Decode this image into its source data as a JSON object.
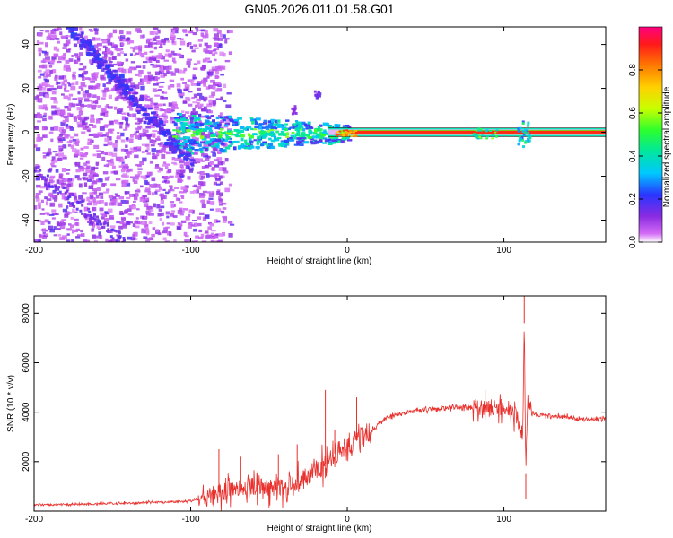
{
  "chart_data": [
    {
      "id": "spectrogram",
      "type": "heatmap",
      "title": "GN05.2026.011.01.58.G01",
      "xlabel": "Height of straight line (km)",
      "ylabel": "Frequency (Hz)",
      "xlim": [
        -200,
        165
      ],
      "ylim": [
        -50,
        48
      ],
      "xticks": [
        "-200",
        "-100",
        "0",
        "100"
      ],
      "xtick_values": [
        -200,
        -100,
        0,
        100
      ],
      "yticks": [
        "40",
        "20",
        "0",
        "-20",
        "-40"
      ],
      "ytick_values": [
        40,
        20,
        0,
        -20,
        -40
      ],
      "colorbar": {
        "label": "Normalized spectral amplitude",
        "range": [
          0,
          1
        ],
        "ticks": [
          "0.0",
          "0.2",
          "0.4",
          "0.6",
          "0.8"
        ],
        "tick_values": [
          0,
          0.2,
          0.4,
          0.6,
          0.8
        ]
      },
      "features": {
        "noise_region_km": [
          -200,
          -85
        ],
        "diagonal_trace": {
          "from": [
            -178,
            48
          ],
          "to": [
            -100,
            -14
          ]
        },
        "carrier_line_hz": 0,
        "carrier_strong_from_km": 0
      }
    },
    {
      "id": "snr",
      "type": "line",
      "xlabel": "Height of straight line (km)",
      "ylabel": "SNR (10 * v/v)",
      "xlim": [
        -200,
        165
      ],
      "ylim": [
        0,
        8700
      ],
      "xticks": [
        "-200",
        "-100",
        "0",
        "100"
      ],
      "xtick_values": [
        -200,
        -100,
        0,
        100
      ],
      "yticks": [
        "2000",
        "4000",
        "6000",
        "8000"
      ],
      "ytick_values": [
        2000,
        4000,
        6000,
        8000
      ],
      "color": "#e8302c",
      "series": {
        "name": "SNR",
        "x": [
          -200,
          -170,
          -140,
          -110,
          -100,
          -90,
          -80,
          -70,
          -60,
          -50,
          -40,
          -30,
          -25,
          -20,
          -15,
          -10,
          -5,
          0,
          5,
          10,
          15,
          20,
          25,
          30,
          40,
          50,
          60,
          70,
          80,
          85,
          90,
          95,
          100,
          105,
          108,
          110,
          112,
          113,
          114,
          115,
          116,
          118,
          120,
          130,
          140,
          150,
          165
        ],
        "y": [
          250,
          280,
          320,
          380,
          420,
          550,
          800,
          900,
          950,
          1000,
          1050,
          1200,
          1400,
          1500,
          1800,
          2200,
          2500,
          2600,
          2800,
          3000,
          3200,
          3500,
          3750,
          3900,
          4000,
          4100,
          4150,
          4200,
          4200,
          4150,
          4200,
          4150,
          4200,
          4000,
          3800,
          3500,
          3000,
          7600,
          1500,
          4600,
          4200,
          4000,
          3900,
          3850,
          3800,
          3750,
          3700
        ]
      },
      "spikes": [
        {
          "x": -82,
          "y": 2500
        },
        {
          "x": -68,
          "y": 2200
        },
        {
          "x": -44,
          "y": 2300
        },
        {
          "x": -32,
          "y": 2700
        },
        {
          "x": -14,
          "y": 4900
        },
        {
          "x": -8,
          "y": 3300
        },
        {
          "x": 6,
          "y": 4600
        },
        {
          "x": 10,
          "y": 3200
        },
        {
          "x": 88,
          "y": 4900
        },
        {
          "x": 113,
          "y": 8700
        },
        {
          "x": 114,
          "y": 500
        }
      ]
    }
  ]
}
